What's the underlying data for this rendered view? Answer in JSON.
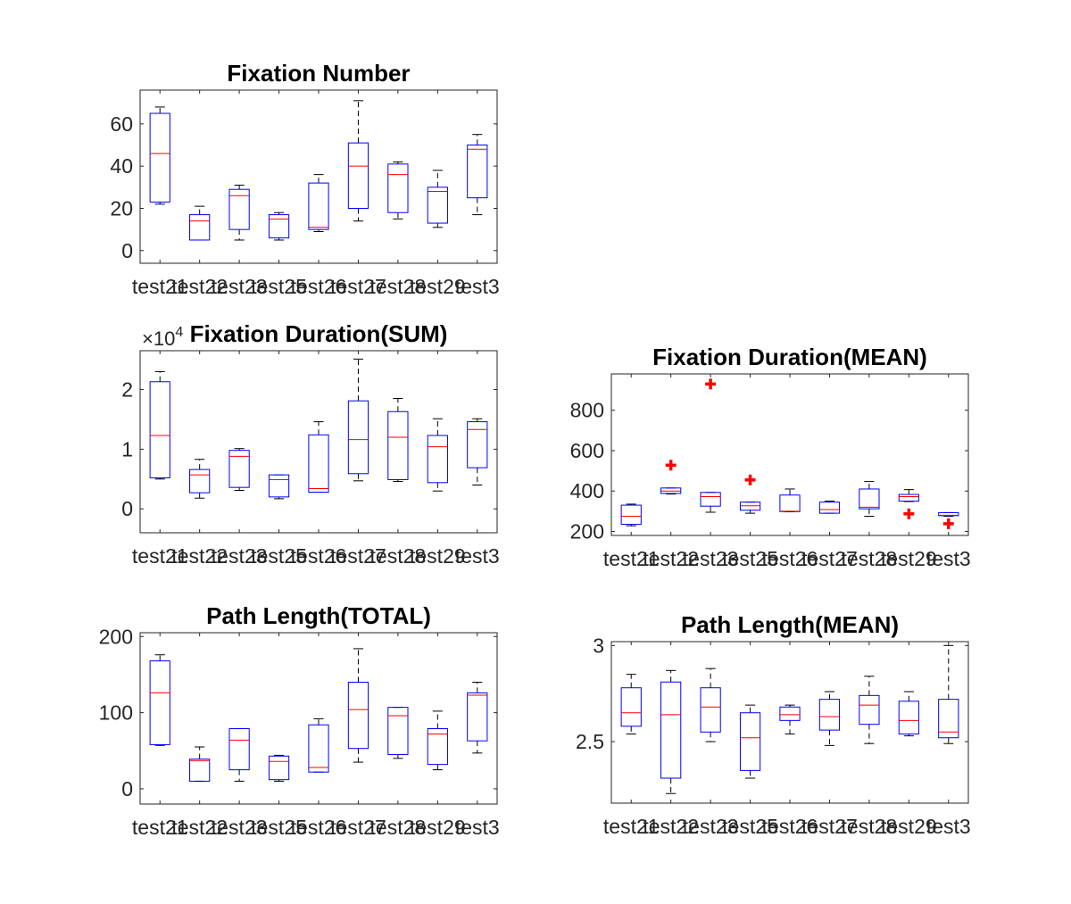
{
  "chart_data": [
    {
      "type": "boxplot",
      "title": "Fixation Number",
      "categories": [
        "test21",
        "test22",
        "test23",
        "test25",
        "test26",
        "test27",
        "test28",
        "test29",
        "test3"
      ],
      "ylim": [
        -6,
        76
      ],
      "yticks": [
        0,
        20,
        40,
        60
      ],
      "ytick_labels": [
        "0",
        "20",
        "40",
        "60"
      ],
      "boxes": [
        {
          "lw": 22,
          "q1": 23,
          "med": 46,
          "q3": 65,
          "uw": 68,
          "outliers": []
        },
        {
          "lw": 5,
          "q1": 5,
          "med": 14,
          "q3": 17,
          "uw": 21,
          "outliers": []
        },
        {
          "lw": 5,
          "q1": 10,
          "med": 26,
          "q3": 29,
          "uw": 31,
          "outliers": []
        },
        {
          "lw": 5,
          "q1": 6,
          "med": 15,
          "q3": 17,
          "uw": 18,
          "outliers": []
        },
        {
          "lw": 9,
          "q1": 10,
          "med": 11,
          "q3": 32,
          "uw": 36,
          "outliers": []
        },
        {
          "lw": 14,
          "q1": 20,
          "med": 40,
          "q3": 51,
          "uw": 71,
          "outliers": []
        },
        {
          "lw": 15,
          "q1": 18,
          "med": 36,
          "q3": 41,
          "uw": 42,
          "outliers": []
        },
        {
          "lw": 11,
          "q1": 13,
          "med": 28,
          "q3": 30,
          "uw": 38,
          "outliers": []
        },
        {
          "lw": 17,
          "q1": 25,
          "med": 48,
          "q3": 50,
          "uw": 55,
          "outliers": []
        }
      ]
    },
    {
      "type": "boxplot",
      "title": "Fixation Duration(SUM)",
      "exponent_label": "×10",
      "exponent_power": "4",
      "categories": [
        "test21",
        "test22",
        "test23",
        "test25",
        "test26",
        "test27",
        "test28",
        "test29",
        "test3"
      ],
      "ylim": [
        -0.4,
        2.65
      ],
      "yticks": [
        0,
        1,
        2
      ],
      "ytick_labels": [
        "0",
        "1",
        "2"
      ],
      "boxes": [
        {
          "lw": 0.5,
          "q1": 0.52,
          "med": 1.23,
          "q3": 2.13,
          "uw": 2.3,
          "outliers": []
        },
        {
          "lw": 0.18,
          "q1": 0.27,
          "med": 0.57,
          "q3": 0.66,
          "uw": 0.83,
          "outliers": []
        },
        {
          "lw": 0.31,
          "q1": 0.36,
          "med": 0.88,
          "q3": 0.98,
          "uw": 1.01,
          "outliers": []
        },
        {
          "lw": 0.17,
          "q1": 0.2,
          "med": 0.49,
          "q3": 0.57,
          "uw": 0.57,
          "outliers": []
        },
        {
          "lw": 0.28,
          "q1": 0.28,
          "med": 0.34,
          "q3": 1.24,
          "uw": 1.46,
          "outliers": []
        },
        {
          "lw": 0.47,
          "q1": 0.59,
          "med": 1.16,
          "q3": 1.81,
          "uw": 2.51,
          "outliers": []
        },
        {
          "lw": 0.46,
          "q1": 0.49,
          "med": 1.2,
          "q3": 1.63,
          "uw": 1.85,
          "outliers": []
        },
        {
          "lw": 0.3,
          "q1": 0.44,
          "med": 1.04,
          "q3": 1.23,
          "uw": 1.51,
          "outliers": []
        },
        {
          "lw": 0.4,
          "q1": 0.69,
          "med": 1.33,
          "q3": 1.46,
          "uw": 1.51,
          "outliers": []
        }
      ]
    },
    {
      "type": "boxplot",
      "title": "Fixation Duration(MEAN)",
      "categories": [
        "test21",
        "test22",
        "test23",
        "test25",
        "test26",
        "test27",
        "test28",
        "test29",
        "test3"
      ],
      "ylim": [
        180,
        980
      ],
      "yticks": [
        200,
        400,
        600,
        800
      ],
      "ytick_labels": [
        "200",
        "400",
        "600",
        "800"
      ],
      "boxes": [
        {
          "lw": 228,
          "q1": 235,
          "med": 275,
          "q3": 330,
          "uw": 335,
          "outliers": []
        },
        {
          "lw": 385,
          "q1": 388,
          "med": 400,
          "q3": 415,
          "uw": 415,
          "outliers": [
            528
          ]
        },
        {
          "lw": 295,
          "q1": 325,
          "med": 372,
          "q3": 393,
          "uw": 393,
          "outliers": [
            930
          ]
        },
        {
          "lw": 290,
          "q1": 305,
          "med": 327,
          "q3": 345,
          "uw": 345,
          "outliers": [
            455
          ]
        },
        {
          "lw": 297,
          "q1": 298,
          "med": 300,
          "q3": 380,
          "uw": 410,
          "outliers": []
        },
        {
          "lw": 290,
          "q1": 290,
          "med": 308,
          "q3": 345,
          "uw": 350,
          "outliers": []
        },
        {
          "lw": 275,
          "q1": 312,
          "med": 320,
          "q3": 410,
          "uw": 447,
          "outliers": []
        },
        {
          "lw": 348,
          "q1": 350,
          "med": 372,
          "q3": 383,
          "uw": 407,
          "outliers": [
            287
          ]
        },
        {
          "lw": 275,
          "q1": 278,
          "med": 280,
          "q3": 293,
          "uw": 293,
          "outliers": [
            238
          ]
        }
      ]
    },
    {
      "type": "boxplot",
      "title": "Path Length(TOTAL)",
      "categories": [
        "test21",
        "test22",
        "test23",
        "test25",
        "test26",
        "test27",
        "test28",
        "test29",
        "test3"
      ],
      "ylim": [
        -20,
        205
      ],
      "yticks": [
        0,
        100,
        200
      ],
      "ytick_labels": [
        "0",
        "100",
        "200"
      ],
      "boxes": [
        {
          "lw": 57,
          "q1": 58,
          "med": 126,
          "q3": 168,
          "uw": 176,
          "outliers": []
        },
        {
          "lw": 10,
          "q1": 10,
          "med": 37,
          "q3": 39,
          "uw": 55,
          "outliers": []
        },
        {
          "lw": 10,
          "q1": 25,
          "med": 64,
          "q3": 79,
          "uw": 79,
          "outliers": []
        },
        {
          "lw": 10,
          "q1": 12,
          "med": 36,
          "q3": 43,
          "uw": 44,
          "outliers": []
        },
        {
          "lw": 22,
          "q1": 22,
          "med": 28,
          "q3": 84,
          "uw": 92,
          "outliers": []
        },
        {
          "lw": 35,
          "q1": 53,
          "med": 104,
          "q3": 140,
          "uw": 184,
          "outliers": []
        },
        {
          "lw": 40,
          "q1": 45,
          "med": 96,
          "q3": 107,
          "uw": 107,
          "outliers": []
        },
        {
          "lw": 25,
          "q1": 32,
          "med": 72,
          "q3": 79,
          "uw": 102,
          "outliers": []
        },
        {
          "lw": 47,
          "q1": 63,
          "med": 123,
          "q3": 126,
          "uw": 140,
          "outliers": []
        }
      ]
    },
    {
      "type": "boxplot",
      "title": "Path Length(MEAN)",
      "categories": [
        "test21",
        "test22",
        "test23",
        "test25",
        "test26",
        "test27",
        "test28",
        "test29",
        "test3"
      ],
      "ylim": [
        2.18,
        3.02
      ],
      "yticks": [
        2.5,
        3
      ],
      "ytick_labels": [
        "2.5",
        "3"
      ],
      "boxes": [
        {
          "lw": 2.54,
          "q1": 2.58,
          "med": 2.65,
          "q3": 2.78,
          "uw": 2.85,
          "outliers": []
        },
        {
          "lw": 2.23,
          "q1": 2.31,
          "med": 2.64,
          "q3": 2.81,
          "uw": 2.87,
          "outliers": []
        },
        {
          "lw": 2.5,
          "q1": 2.55,
          "med": 2.68,
          "q3": 2.78,
          "uw": 2.88,
          "outliers": []
        },
        {
          "lw": 2.31,
          "q1": 2.35,
          "med": 2.52,
          "q3": 2.65,
          "uw": 2.69,
          "outliers": []
        },
        {
          "lw": 2.54,
          "q1": 2.61,
          "med": 2.64,
          "q3": 2.68,
          "uw": 2.69,
          "outliers": []
        },
        {
          "lw": 2.48,
          "q1": 2.56,
          "med": 2.63,
          "q3": 2.72,
          "uw": 2.76,
          "outliers": []
        },
        {
          "lw": 2.49,
          "q1": 2.59,
          "med": 2.69,
          "q3": 2.74,
          "uw": 2.84,
          "outliers": []
        },
        {
          "lw": 2.53,
          "q1": 2.54,
          "med": 2.61,
          "q3": 2.71,
          "uw": 2.76,
          "outliers": []
        },
        {
          "lw": 2.49,
          "q1": 2.52,
          "med": 2.55,
          "q3": 2.72,
          "uw": 3.0,
          "outliers": []
        }
      ]
    }
  ],
  "colors": {
    "box": "#0000ff",
    "median": "#ff0000",
    "whisker": "#000000",
    "outlier": "#ff0000",
    "axis": "#262626",
    "background": "#ffffff"
  }
}
